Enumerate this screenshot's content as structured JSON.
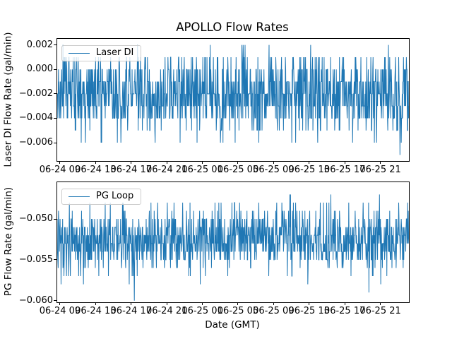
{
  "figure": {
    "title": "APOLLO Flow Rates",
    "xlabel": "Date (GMT)",
    "background_color": "#ffffff",
    "line_color": "#1f77b4",
    "text_color": "#000000",
    "xtick_labels": [
      "06-24 09",
      "06-24 13",
      "06-24 17",
      "06-24 21",
      "06-25 01",
      "06-25 05",
      "06-25 09",
      "06-25 13",
      "06-25 17",
      "06-25 21"
    ]
  },
  "x_axis": {
    "first_tick_frac": 0.008,
    "tick_step_frac": 0.1012,
    "tick_count": 10
  },
  "chart_data": [
    {
      "type": "line",
      "legend": {
        "label": "Laser DI",
        "position": "upper left"
      },
      "ylabel": "Laser DI Flow Rate (gal/min)",
      "ylim": [
        -0.0075,
        0.0025
      ],
      "yticks": [
        0.002,
        0.0,
        -0.002,
        -0.004,
        -0.006
      ],
      "ytick_labels": [
        "0.002",
        "0.000",
        "−0.002",
        "−0.004",
        "−0.006"
      ],
      "grid": false,
      "signal": {
        "n_points": 1100,
        "seed": 42,
        "levels": [
          0.002,
          0.001,
          0.0,
          -0.001,
          -0.002,
          -0.003,
          -0.004,
          -0.005,
          -0.006,
          -0.007
        ],
        "weights": [
          0.008,
          0.08,
          0.15,
          0.17,
          0.2,
          0.19,
          0.14,
          0.045,
          0.015,
          0.002
        ]
      }
    },
    {
      "type": "line",
      "legend": {
        "label": "PG Loop",
        "position": "upper left"
      },
      "ylabel": "PG Flow Rate (gal/min)",
      "ylim": [
        -0.0602,
        -0.0455
      ],
      "yticks": [
        -0.05,
        -0.055,
        -0.06
      ],
      "ytick_labels": [
        "−0.050",
        "−0.055",
        "−0.060"
      ],
      "grid": false,
      "signal": {
        "n_points": 1100,
        "seed": 1234,
        "levels": [
          -0.047,
          -0.048,
          -0.049,
          -0.05,
          -0.051,
          -0.052,
          -0.053,
          -0.054,
          -0.055,
          -0.056,
          -0.057,
          -0.058,
          -0.059,
          -0.06
        ],
        "weights": [
          0.004,
          0.02,
          0.04,
          0.07,
          0.16,
          0.19,
          0.2,
          0.16,
          0.1,
          0.04,
          0.015,
          0.008,
          0.002,
          0.001
        ]
      }
    }
  ]
}
